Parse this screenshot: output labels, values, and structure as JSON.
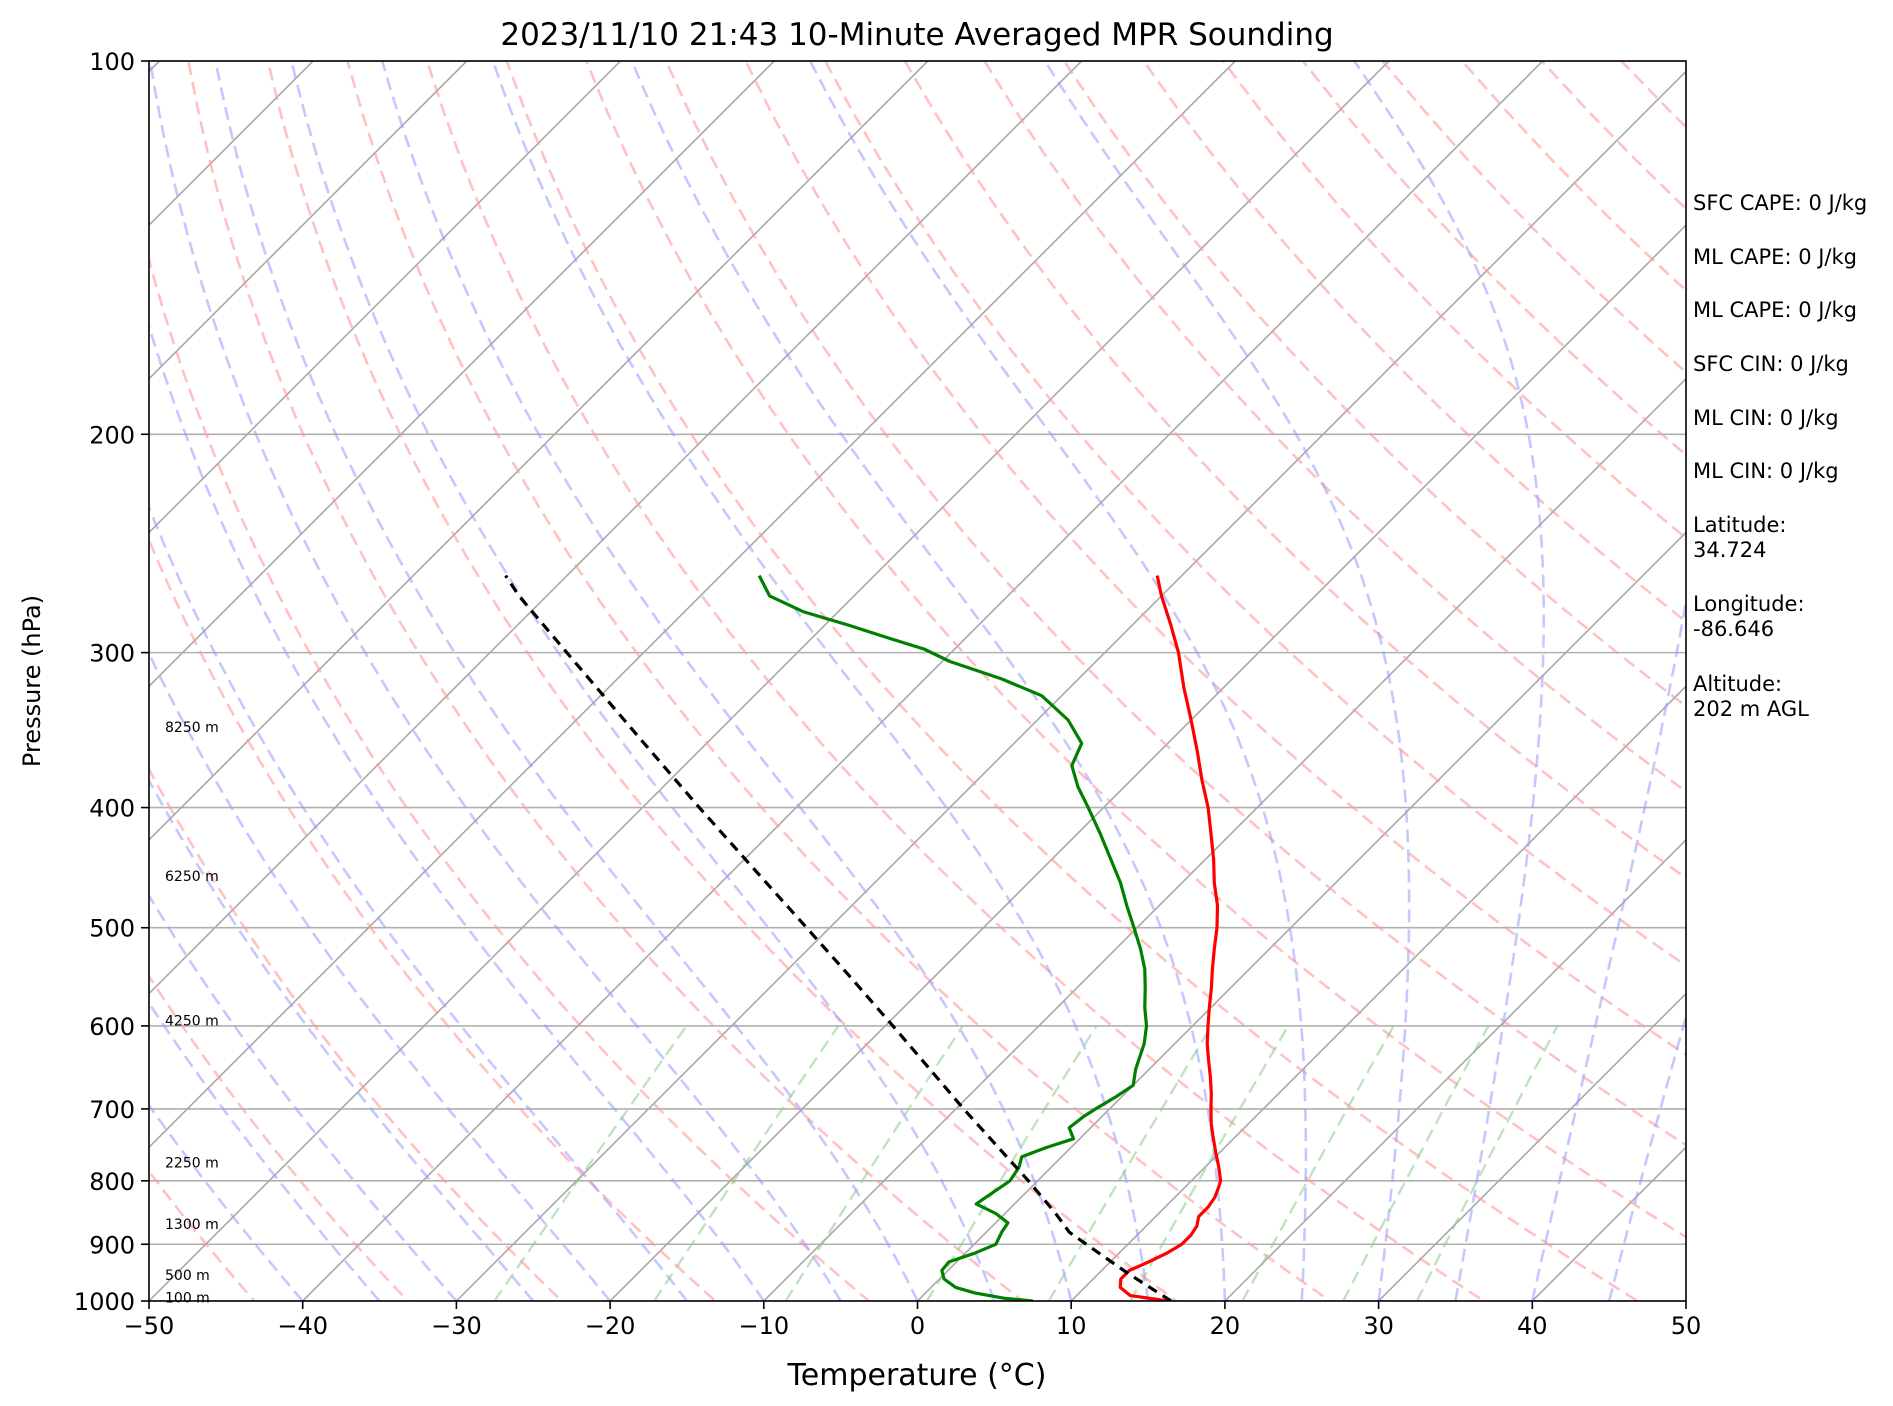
{
  "chart_data": {
    "type": "skew-t",
    "title": "2023/11/10 21:43 10-Minute Averaged MPR Sounding",
    "xlabel": "Temperature (°C)",
    "ylabel": "Pressure (hPa)",
    "xlim": [
      -50,
      50
    ],
    "ylim": [
      1000,
      100
    ],
    "y_scale": "log",
    "x_ticks": [
      -50,
      -40,
      -30,
      -20,
      -10,
      0,
      10,
      20,
      30,
      40,
      50
    ],
    "x_tick_labels": [
      "−50",
      "−40",
      "−30",
      "−20",
      "−10",
      "0",
      "10",
      "20",
      "30",
      "40",
      "50"
    ],
    "y_ticks": [
      100,
      200,
      300,
      400,
      500,
      600,
      700,
      800,
      900,
      1000
    ],
    "y_tick_labels": [
      "100",
      "200",
      "300",
      "400",
      "500",
      "600",
      "700",
      "800",
      "900",
      "1000"
    ],
    "grid": true,
    "height_labels": [
      {
        "text": "100 m",
        "p": 995
      },
      {
        "text": "500 m",
        "p": 955
      },
      {
        "text": "1300 m",
        "p": 868
      },
      {
        "text": "2250 m",
        "p": 775
      },
      {
        "text": "4250 m",
        "p": 595
      },
      {
        "text": "6250 m",
        "p": 455
      },
      {
        "text": "8250 m",
        "p": 345
      }
    ],
    "series": [
      {
        "role": "temperature",
        "color": "#ff0000",
        "points": [
          [
            1000,
            16.3
          ],
          [
            990,
            13.5
          ],
          [
            975,
            12.3
          ],
          [
            960,
            11.8
          ],
          [
            945,
            11.8
          ],
          [
            930,
            12.5
          ],
          [
            915,
            13.1
          ],
          [
            900,
            13.5
          ],
          [
            885,
            13.5
          ],
          [
            870,
            13.3
          ],
          [
            855,
            12.8
          ],
          [
            840,
            12.8
          ],
          [
            825,
            12.6
          ],
          [
            810,
            12.2
          ],
          [
            800,
            11.9
          ],
          [
            780,
            10.9
          ],
          [
            760,
            9.8
          ],
          [
            740,
            8.7
          ],
          [
            720,
            7.6
          ],
          [
            700,
            6.6
          ],
          [
            680,
            5.6
          ],
          [
            660,
            4.5
          ],
          [
            640,
            3.3
          ],
          [
            620,
            2.1
          ],
          [
            600,
            1.0
          ],
          [
            580,
            -0.1
          ],
          [
            560,
            -1.2
          ],
          [
            540,
            -2.4
          ],
          [
            520,
            -3.6
          ],
          [
            500,
            -4.8
          ],
          [
            480,
            -6.2
          ],
          [
            460,
            -7.9
          ],
          [
            440,
            -9.5
          ],
          [
            420,
            -11.3
          ],
          [
            400,
            -13.2
          ],
          [
            380,
            -15.4
          ],
          [
            360,
            -17.6
          ],
          [
            340,
            -20.0
          ],
          [
            320,
            -22.6
          ],
          [
            300,
            -25.2
          ],
          [
            285,
            -27.5
          ],
          [
            270,
            -30.0
          ],
          [
            260,
            -31.6
          ]
        ]
      },
      {
        "role": "dewpoint",
        "color": "#007f00",
        "points": [
          [
            1000,
            7.5
          ],
          [
            995,
            5.5
          ],
          [
            985,
            3.2
          ],
          [
            975,
            1.6
          ],
          [
            960,
            0.3
          ],
          [
            945,
            -0.4
          ],
          [
            930,
            -0.5
          ],
          [
            915,
            0.6
          ],
          [
            900,
            1.4
          ],
          [
            880,
            1.0
          ],
          [
            865,
            0.8
          ],
          [
            850,
            -0.6
          ],
          [
            835,
            -2.5
          ],
          [
            820,
            -2.2
          ],
          [
            800,
            -1.8
          ],
          [
            780,
            -2.1
          ],
          [
            765,
            -2.6
          ],
          [
            752,
            -1.6
          ],
          [
            740,
            -0.4
          ],
          [
            725,
            -1.4
          ],
          [
            710,
            -1.2
          ],
          [
            700,
            -0.9
          ],
          [
            685,
            -0.4
          ],
          [
            670,
            0.0
          ],
          [
            650,
            -0.9
          ],
          [
            620,
            -2.0
          ],
          [
            600,
            -3.0
          ],
          [
            580,
            -4.3
          ],
          [
            560,
            -5.5
          ],
          [
            540,
            -6.8
          ],
          [
            520,
            -8.4
          ],
          [
            500,
            -10.2
          ],
          [
            480,
            -12.1
          ],
          [
            460,
            -14.0
          ],
          [
            440,
            -16.2
          ],
          [
            420,
            -18.5
          ],
          [
            400,
            -21.0
          ],
          [
            385,
            -23.0
          ],
          [
            370,
            -24.8
          ],
          [
            355,
            -25.6
          ],
          [
            340,
            -28.0
          ],
          [
            325,
            -31.3
          ],
          [
            315,
            -35.0
          ],
          [
            305,
            -39.5
          ],
          [
            298,
            -42.0
          ],
          [
            292,
            -45.0
          ],
          [
            285,
            -48.5
          ],
          [
            278,
            -52.3
          ],
          [
            270,
            -55.5
          ],
          [
            260,
            -57.5
          ]
        ]
      },
      {
        "role": "parcel",
        "color": "#000000",
        "dashed": true,
        "points": [
          [
            1000,
            16.5
          ],
          [
            950,
            11.9
          ],
          [
            900,
            7.3
          ],
          [
            880,
            5.4
          ],
          [
            850,
            3.3
          ],
          [
            800,
            -0.6
          ],
          [
            750,
            -4.9
          ],
          [
            700,
            -9.5
          ],
          [
            650,
            -14.3
          ],
          [
            600,
            -19.5
          ],
          [
            550,
            -25.2
          ],
          [
            500,
            -31.5
          ],
          [
            450,
            -38.5
          ],
          [
            400,
            -46.3
          ],
          [
            350,
            -55.0
          ],
          [
            300,
            -65.0
          ],
          [
            270,
            -71.8
          ],
          [
            260,
            -74.0
          ]
        ]
      }
    ],
    "side_text": [
      "SFC CAPE: 0 J/kg",
      "ML CAPE: 0 J/kg",
      "ML CAPE: 0 J/kg",
      "SFC CIN: 0 J/kg",
      "ML CIN: 0 J/kg",
      "ML CIN: 0 J/kg",
      "Latitude:\n34.724",
      "Longitude:\n-86.646",
      "Altitude:\n202 m AGL"
    ]
  }
}
